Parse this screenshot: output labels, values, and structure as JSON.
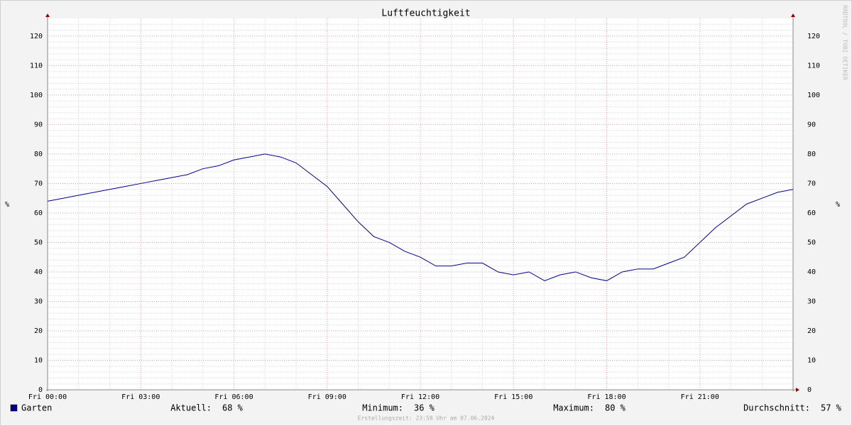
{
  "chart_data": {
    "type": "line",
    "title": "Luftfeuchtigkeit",
    "y_label": "%",
    "y2_label": "%",
    "watermark": "RRDTOOL / TOBI OETIKER",
    "footnote": "Erstellungszeit: 23:58 Uhr am 07.06.2024",
    "x": [
      0,
      0.5,
      1,
      1.5,
      2,
      2.5,
      3,
      3.5,
      4,
      4.5,
      5,
      5.5,
      6,
      6.5,
      7,
      7.5,
      8,
      8.5,
      9,
      9.5,
      10,
      10.5,
      11,
      11.5,
      12,
      12.5,
      13,
      13.5,
      14,
      14.5,
      15,
      15.5,
      16,
      16.5,
      17,
      17.5,
      18,
      18.5,
      19,
      19.5,
      20,
      20.5,
      21,
      21.5,
      22,
      22.5,
      23,
      23.5,
      24
    ],
    "xlim": [
      0,
      24
    ],
    "xticks": [
      {
        "value": 0,
        "label": "Fri 00:00"
      },
      {
        "value": 3,
        "label": "Fri 03:00"
      },
      {
        "value": 6,
        "label": "Fri 06:00"
      },
      {
        "value": 9,
        "label": "Fri 09:00"
      },
      {
        "value": 12,
        "label": "Fri 12:00"
      },
      {
        "value": 15,
        "label": "Fri 15:00"
      },
      {
        "value": 18,
        "label": "Fri 18:00"
      },
      {
        "value": 21,
        "label": "Fri 21:00"
      }
    ],
    "ylim": [
      0,
      126
    ],
    "yticks": [
      0,
      10,
      20,
      30,
      40,
      50,
      60,
      70,
      80,
      90,
      100,
      110,
      120
    ],
    "grid": true,
    "series": [
      {
        "name": "Garten",
        "color": "#00008b",
        "values": [
          64,
          65,
          66,
          67,
          68,
          69,
          70,
          71,
          72,
          73,
          75,
          76,
          78,
          79,
          80,
          79,
          77,
          73,
          69,
          63,
          57,
          52,
          50,
          47,
          45,
          42,
          42,
          43,
          43,
          40,
          39,
          40,
          37,
          39,
          40,
          38,
          37,
          40,
          41,
          41,
          43,
          45,
          50,
          55,
          59,
          63,
          65,
          67,
          68
        ]
      }
    ],
    "legend_stats": {
      "labels": [
        "Aktuell:",
        "Minimum:",
        "Maximum:",
        "Durchschnitt:"
      ],
      "values": [
        68,
        36,
        80,
        57
      ],
      "value_labels": [
        "68 %",
        "36 %",
        "80 %",
        "57 %"
      ]
    }
  }
}
